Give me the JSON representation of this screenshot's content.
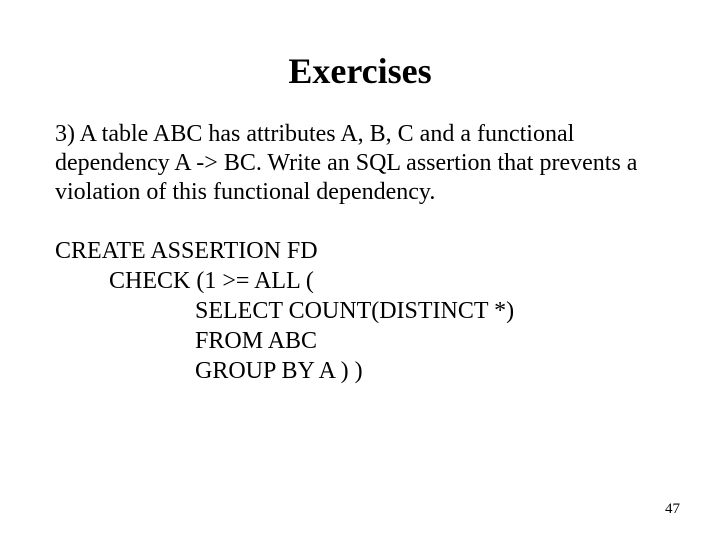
{
  "title": "Exercises",
  "question": "3) A table ABC has attributes A, B, C and a functional dependency A -> BC. Write an SQL assertion that prevents a violation of this functional dependency.",
  "code": {
    "lines": [
      {
        "text": "CREATE ASSERTION FD",
        "indent": 0
      },
      {
        "text": "CHECK  (1 >= ALL (",
        "indent": 1
      },
      {
        "text": "SELECT COUNT(DISTINCT *)",
        "indent": 2
      },
      {
        "text": "FROM ABC",
        "indent": 2
      },
      {
        "text": "GROUP BY A ) )",
        "indent": 2
      }
    ]
  },
  "page_number": "47",
  "style": {
    "background_color": "#ffffff",
    "text_color": "#000000",
    "title_fontsize": 36,
    "body_fontsize": 24,
    "page_number_fontsize": 15,
    "font_family": "Times New Roman"
  }
}
